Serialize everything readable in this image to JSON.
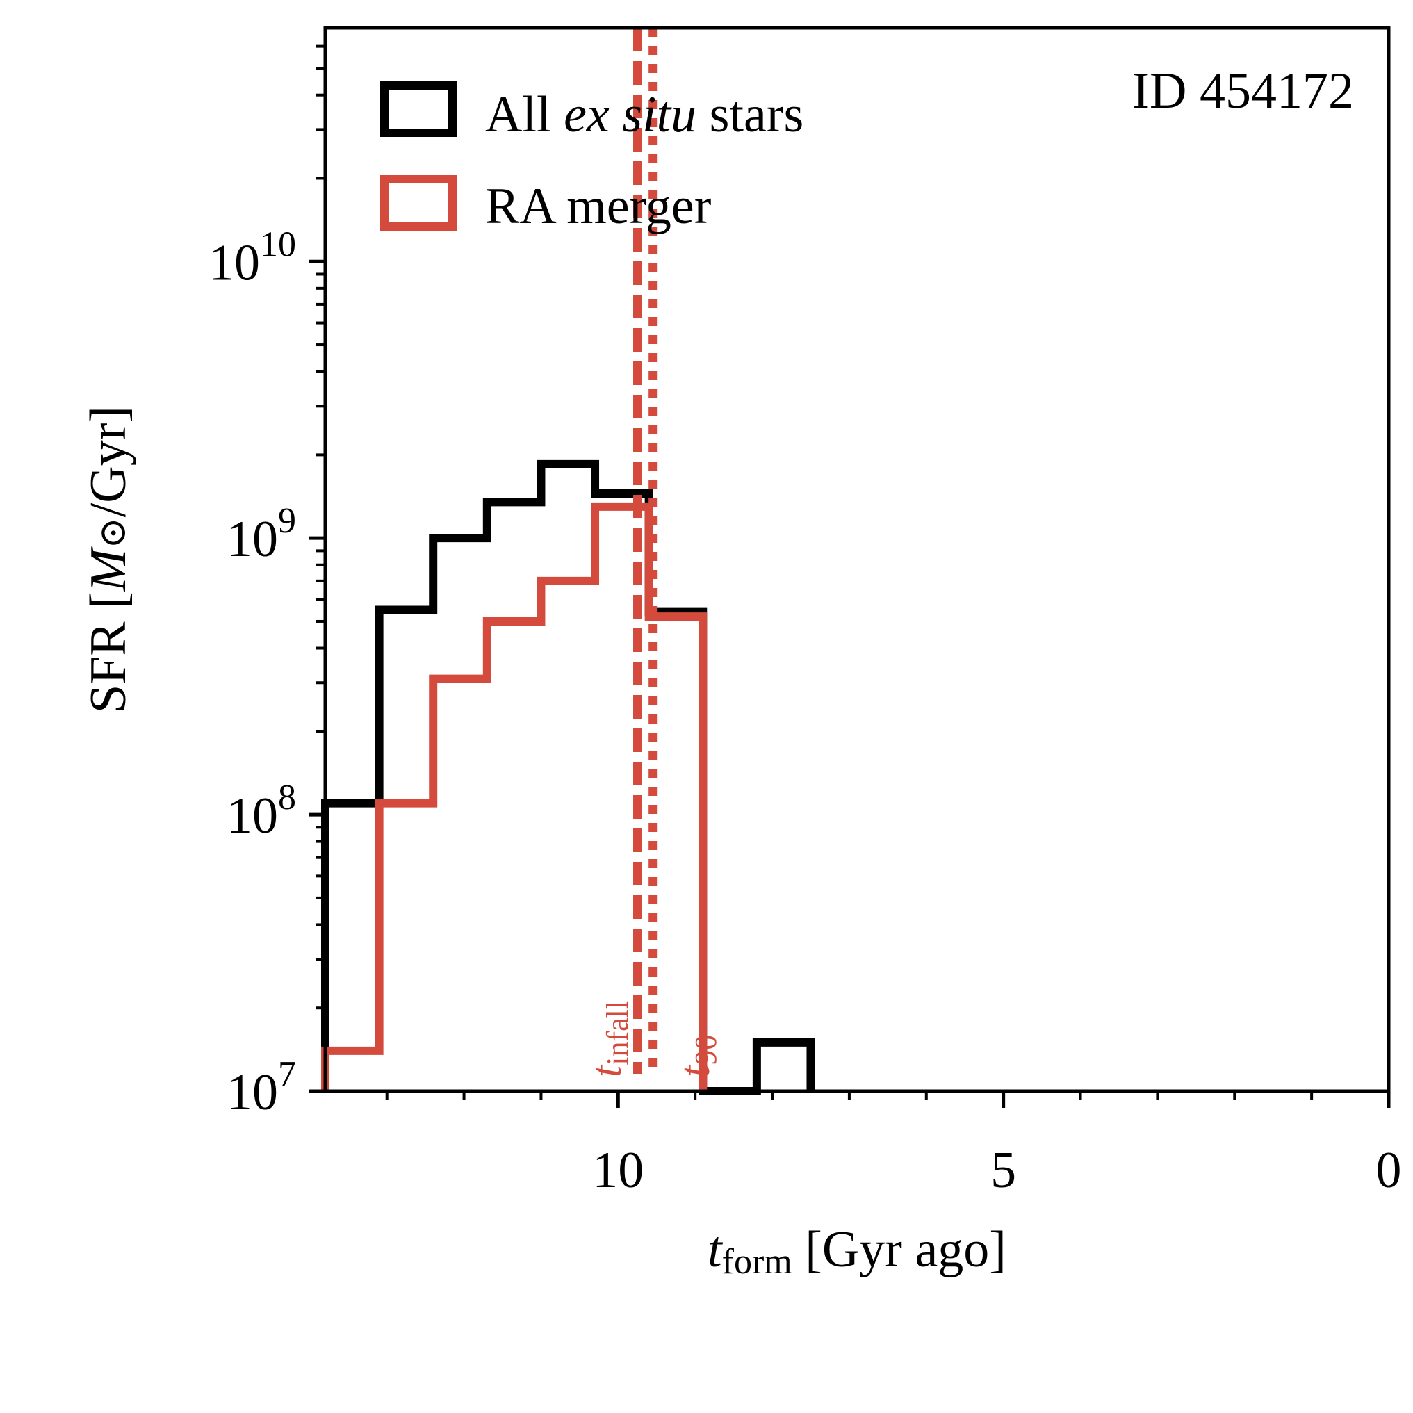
{
  "chart_data": {
    "type": "step-histogram",
    "annotation": "ID 454172",
    "xlabel": {
      "var": "t",
      "sub": "form",
      "rest": " [Gyr ago]"
    },
    "ylabel": {
      "prefix": "SFR [",
      "var": "M",
      "sun": "⊙",
      "suffix": "/Gyr]"
    },
    "xlim": [
      13.8,
      0
    ],
    "xscale": "linear",
    "x_ticks": [
      {
        "value": 10,
        "label": "10"
      },
      {
        "value": 5,
        "label": "5"
      },
      {
        "value": 0,
        "label": "0"
      }
    ],
    "ylim": [
      10000000.0,
      70000000000.0
    ],
    "yscale": "log",
    "y_ticks": [
      {
        "value": 10000000.0,
        "base": "10",
        "exp": "7"
      },
      {
        "value": 100000000.0,
        "base": "10",
        "exp": "8"
      },
      {
        "value": 1000000000.0,
        "base": "10",
        "exp": "9"
      },
      {
        "value": 10000000000.0,
        "base": "10",
        "exp": "10"
      }
    ],
    "legend_position": "top-left",
    "series": [
      {
        "name": "All ex situ stars",
        "legend": {
          "pre": "All ",
          "ital": "ex situ",
          "post": " stars"
        },
        "color": "#000000",
        "bin_edges": [
          13.8,
          13.1,
          12.4,
          11.7,
          11.0,
          10.3,
          9.6,
          8.9,
          8.2,
          7.5
        ],
        "values": [
          110000000.0,
          550000000.0,
          1000000000.0,
          1350000000.0,
          1850000000.0,
          1450000000.0,
          540000000.0,
          0,
          15000000.0
        ]
      },
      {
        "name": "RA merger",
        "legend": {
          "pre": "RA merger",
          "ital": "",
          "post": ""
        },
        "color": "#d44a3c",
        "bin_edges": [
          13.8,
          13.1,
          12.4,
          11.7,
          11.0,
          10.3,
          9.6,
          8.9
        ],
        "values": [
          14000000.0,
          110000000.0,
          310000000.0,
          500000000.0,
          700000000.0,
          1300000000.0,
          520000000.0
        ]
      }
    ],
    "vlines": [
      {
        "name": "t_infall",
        "x": 9.75,
        "style": "dashed",
        "color": "#d44a3c",
        "label_var": "t",
        "label_sub": "infall"
      },
      {
        "name": "t_90",
        "x": 9.55,
        "style": "dotted",
        "color": "#d44a3c",
        "label_var": "t",
        "label_sub": "90"
      }
    ]
  }
}
